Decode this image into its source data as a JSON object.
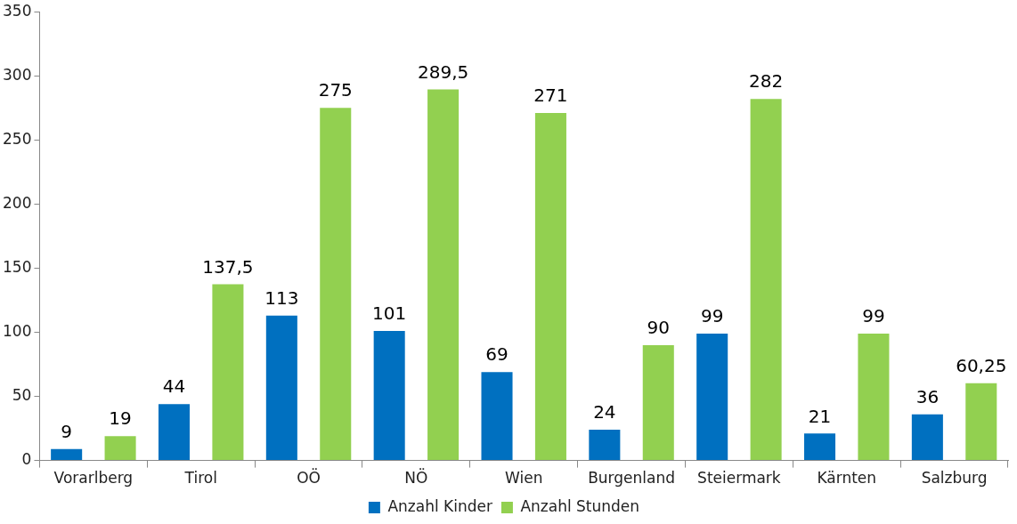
{
  "chart_data": {
    "type": "bar",
    "categories": [
      "Vorarlberg",
      "Tirol",
      "OÖ",
      "NÖ",
      "Wien",
      "Burgenland",
      "Steiermark",
      "Kärnten",
      "Salzburg"
    ],
    "series": [
      {
        "name": "Anzahl Kinder",
        "color": "#0070c0",
        "values": [
          9,
          44,
          113,
          101,
          69,
          24,
          99,
          21,
          36
        ],
        "value_labels": [
          "9",
          "44",
          "113",
          "101",
          "69",
          "24",
          "99",
          "21",
          "36"
        ]
      },
      {
        "name": "Anzahl Stunden",
        "color": "#92d050",
        "values": [
          19,
          137.5,
          275,
          289.5,
          271,
          90,
          282,
          99,
          60.25
        ],
        "value_labels": [
          "19",
          "137,5",
          "275",
          "289,5",
          "271",
          "90",
          "282",
          "99",
          "60,25"
        ]
      }
    ],
    "ylim": [
      0,
      350
    ],
    "yticks": [
      0,
      50,
      100,
      150,
      200,
      250,
      300,
      350
    ],
    "grid": false,
    "legend": "bottom"
  }
}
